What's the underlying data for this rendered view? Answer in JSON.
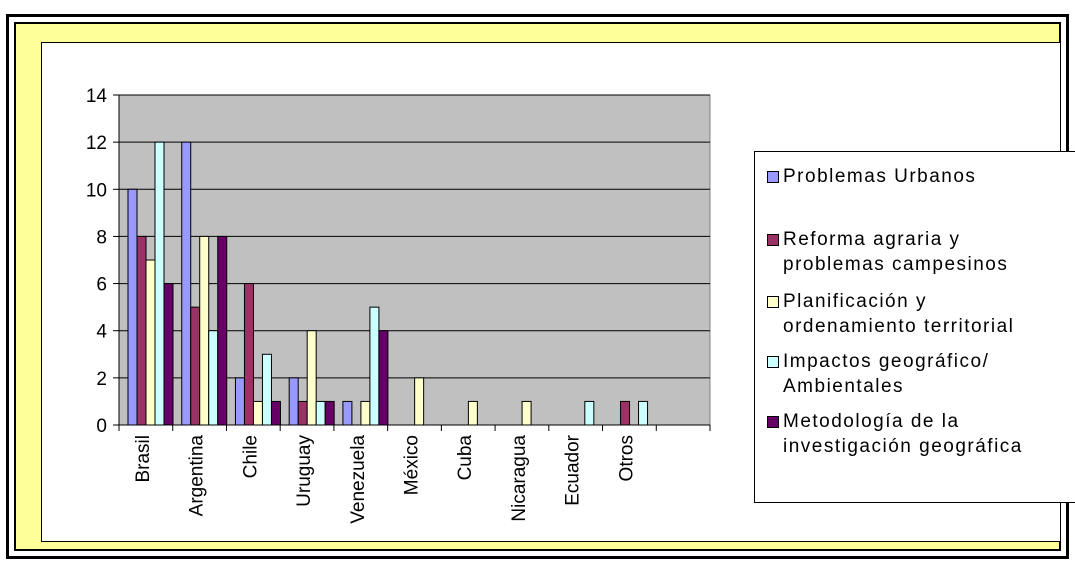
{
  "chart_data": {
    "type": "bar",
    "title": "",
    "xlabel": "",
    "ylabel": "",
    "ylim": [
      0,
      14
    ],
    "yticks": [
      0,
      2,
      4,
      6,
      8,
      10,
      12,
      14
    ],
    "grid": true,
    "legend_position": "right",
    "categories": [
      "Brasil",
      "Argentina",
      "Chile",
      "Uruguay",
      "Venezuela",
      "México",
      "Cuba",
      "Nicaragua",
      "Ecuador",
      "Otros"
    ],
    "series": [
      {
        "name": "Problemas Urbanos",
        "color": "#9999ff",
        "values": [
          10,
          12,
          2,
          2,
          1,
          0,
          0,
          0,
          0,
          0
        ]
      },
      {
        "name": "Reforma agraria y\nproblemas campesinos",
        "color": "#993366",
        "values": [
          8,
          5,
          6,
          1,
          0,
          0,
          0,
          0,
          0,
          1
        ]
      },
      {
        "name": "Planificación y\nordenamiento territorial",
        "color": "#ffffcc",
        "values": [
          7,
          8,
          1,
          4,
          1,
          2,
          1,
          1,
          0,
          0
        ]
      },
      {
        "name": "Impactos geográfico/\nAmbientales",
        "color": "#ccffff",
        "values": [
          12,
          4,
          3,
          1,
          5,
          0,
          0,
          0,
          1,
          1
        ]
      },
      {
        "name": "Metodología de la\ninvestigación geográfica",
        "color": "#660066",
        "values": [
          6,
          8,
          1,
          1,
          4,
          0,
          0,
          0,
          0,
          0
        ]
      }
    ],
    "plot_background": "#c0c0c0",
    "frame_background": "#ffff99"
  }
}
